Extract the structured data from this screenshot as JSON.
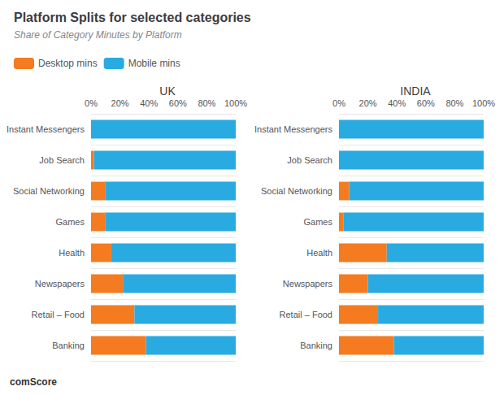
{
  "title": "Platform Splits for selected categories",
  "subtitle": "Share of Category Minutes by Platform",
  "annotations": [
    "comScore"
  ],
  "chart_data": [
    {
      "type": "bar",
      "title": "UK",
      "orientation": "horizontal",
      "stacked": true,
      "grid": "y",
      "legend": "top",
      "categories": [
        "Instant Messengers",
        "Job Search",
        "Social Networking",
        "Games",
        "Health",
        "Newspapers",
        "Retail – Food",
        "Banking"
      ],
      "series": [
        {
          "name": "Desktop mins",
          "color": "#F47B20",
          "values": [
            0,
            2,
            10,
            10,
            14,
            22,
            30,
            38
          ]
        },
        {
          "name": "Mobile mins",
          "color": "#29ABE2",
          "values": [
            100,
            98,
            90,
            90,
            86,
            78,
            70,
            62
          ]
        }
      ],
      "xlim": [
        0,
        100
      ],
      "xticks": [
        {
          "value": 0,
          "label": "0%"
        },
        {
          "value": 20,
          "label": "20%"
        },
        {
          "value": 40,
          "label": "40%"
        },
        {
          "value": 60,
          "label": "60%"
        },
        {
          "value": 80,
          "label": "80%"
        },
        {
          "value": 100,
          "label": "100%"
        }
      ]
    },
    {
      "type": "bar",
      "title": "INDIA",
      "orientation": "horizontal",
      "stacked": true,
      "grid": "y",
      "legend": "top",
      "categories": [
        "Instant Messengers",
        "Job Search",
        "Social Networking",
        "Games",
        "Health",
        "Newspapers",
        "Retail – Food",
        "Banking"
      ],
      "series": [
        {
          "name": "Desktop mins",
          "color": "#F47B20",
          "values": [
            0,
            0,
            7,
            3,
            33,
            20,
            27,
            38
          ]
        },
        {
          "name": "Mobile mins",
          "color": "#29ABE2",
          "values": [
            100,
            100,
            93,
            97,
            67,
            80,
            73,
            62
          ]
        }
      ],
      "xlim": [
        0,
        100
      ],
      "xticks": [
        {
          "value": 0,
          "label": "0%"
        },
        {
          "value": 20,
          "label": "20%"
        },
        {
          "value": 40,
          "label": "40%"
        },
        {
          "value": 60,
          "label": "60%"
        },
        {
          "value": 80,
          "label": "80%"
        },
        {
          "value": 100,
          "label": "100%"
        }
      ]
    }
  ]
}
